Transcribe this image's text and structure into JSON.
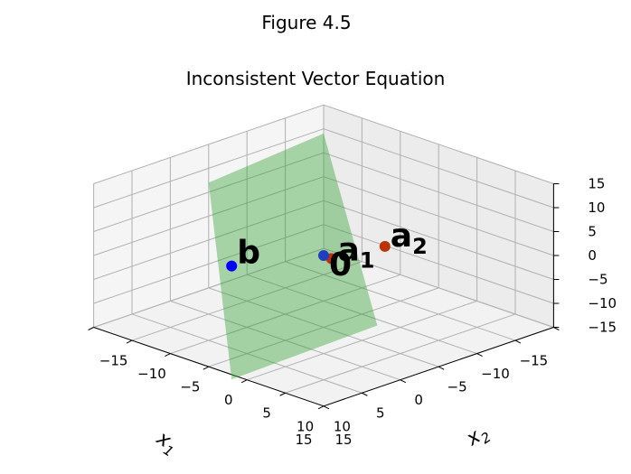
{
  "figure": {
    "suptitle": "Figure 4.5"
  },
  "chart_data": {
    "type": "scatter3d",
    "title": "Inconsistent Vector Equation",
    "xlabel": "x",
    "xlabel_sub": "1",
    "ylabel": "x",
    "ylabel_sub": "2",
    "zlabel": "",
    "xlim": [
      -15,
      15
    ],
    "ylim": [
      -15,
      15
    ],
    "zlim": [
      -15,
      15
    ],
    "x_ticks": [
      "15",
      "10",
      "5",
      "0",
      "−5",
      "−10",
      "−15"
    ],
    "y_ticks": [
      "−15",
      "−10",
      "−5",
      "0",
      "5",
      "10",
      "15"
    ],
    "z_ticks": [
      "15",
      "10",
      "5",
      "0",
      "−5",
      "−10",
      "−15"
    ],
    "grid": true,
    "view": {
      "elev": 30,
      "azim": -135
    },
    "plane": {
      "color": "#2ca02c",
      "alpha": 0.4,
      "description": "span of a1 and a2"
    },
    "points": [
      {
        "name": "a",
        "sub": "1",
        "x": 1,
        "y": 2,
        "z": 1,
        "color": "#bb3300"
      },
      {
        "name": "a",
        "sub": "2",
        "x": -3,
        "y": 5,
        "z": 3,
        "color": "#bb3300"
      },
      {
        "name": "0",
        "sub": "",
        "x": 0,
        "y": 0,
        "z": 0,
        "color": "#1f3fbf"
      },
      {
        "name": "b",
        "sub": "",
        "x": 8,
        "y": -4,
        "z": 0,
        "color": "#0000ff"
      }
    ]
  }
}
